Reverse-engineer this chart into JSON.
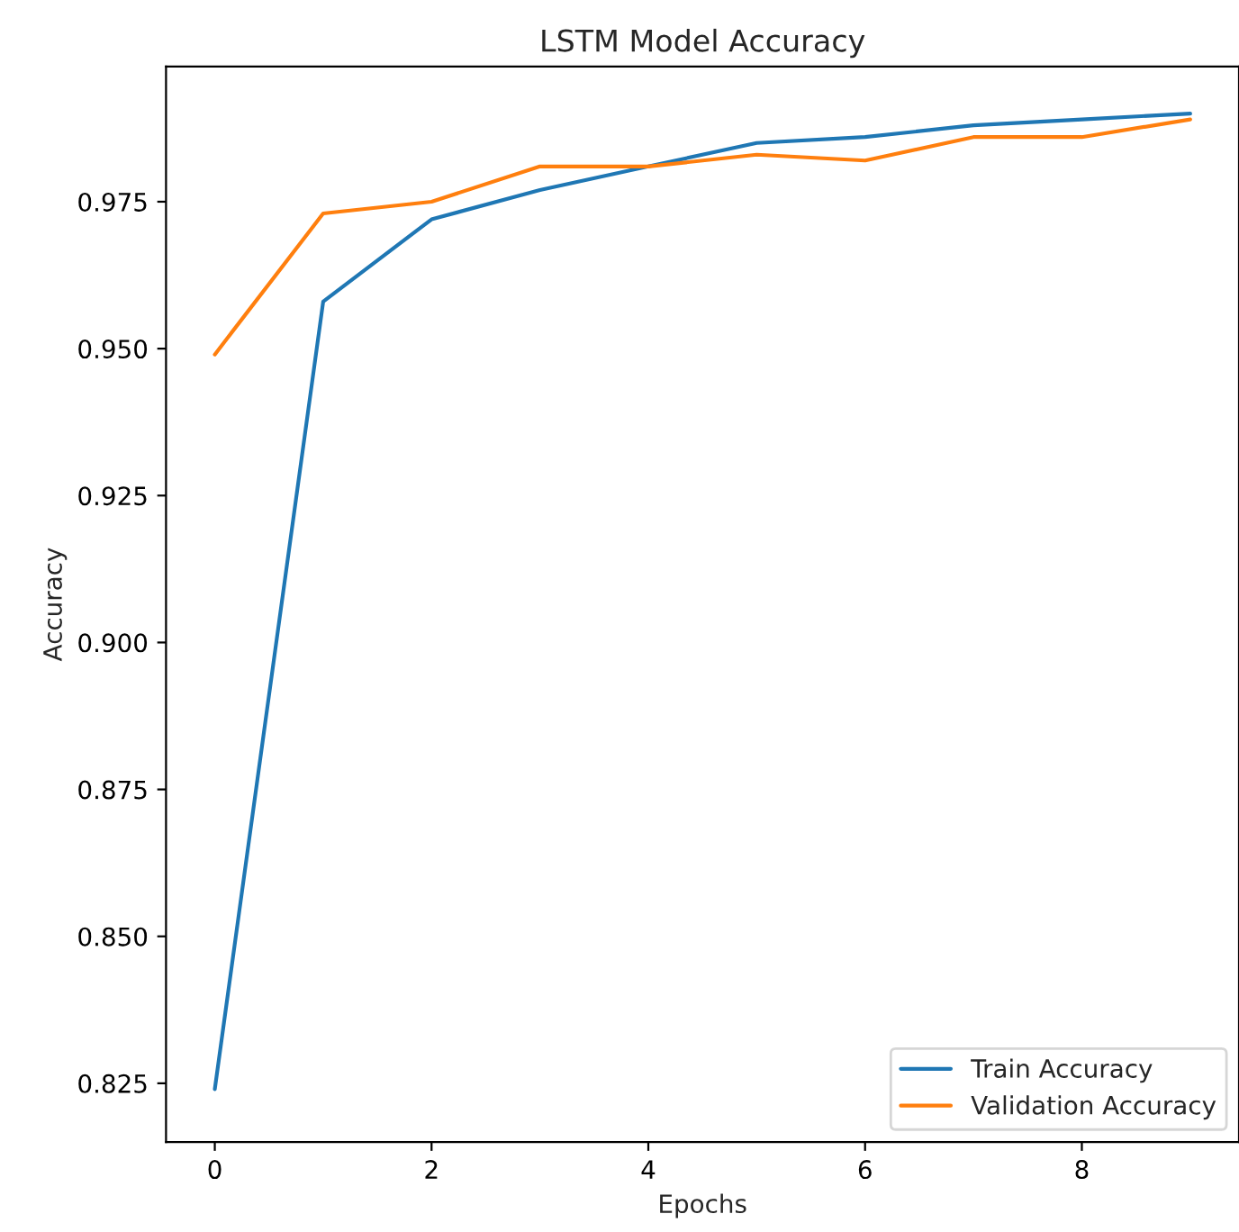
{
  "chart_data": {
    "type": "line",
    "title": "LSTM Model Accuracy",
    "xlabel": "Epochs",
    "ylabel": "Accuracy",
    "x": [
      0,
      1,
      2,
      3,
      4,
      5,
      6,
      7,
      8,
      9
    ],
    "series": [
      {
        "name": "Train Accuracy",
        "color": "#1f77b4",
        "values": [
          0.824,
          0.958,
          0.972,
          0.977,
          0.981,
          0.985,
          0.986,
          0.988,
          0.989,
          0.99
        ]
      },
      {
        "name": "Validation Accuracy",
        "color": "#ff7f0e",
        "values": [
          0.949,
          0.973,
          0.975,
          0.981,
          0.981,
          0.983,
          0.982,
          0.986,
          0.986,
          0.989
        ]
      }
    ],
    "xlim": [
      -0.45,
      9.45
    ],
    "ylim": [
      0.815,
      0.998
    ],
    "xticks": [
      0,
      2,
      4,
      6,
      8
    ],
    "yticks": [
      {
        "value": 0.825,
        "label": "0.825"
      },
      {
        "value": 0.85,
        "label": "0.850"
      },
      {
        "value": 0.875,
        "label": "0.875"
      },
      {
        "value": 0.9,
        "label": "0.900"
      },
      {
        "value": 0.925,
        "label": "0.925"
      },
      {
        "value": 0.95,
        "label": "0.950"
      },
      {
        "value": 0.975,
        "label": "0.975"
      }
    ],
    "legend": "lower right",
    "grid": false,
    "marker": "none",
    "line_style": "solid"
  }
}
